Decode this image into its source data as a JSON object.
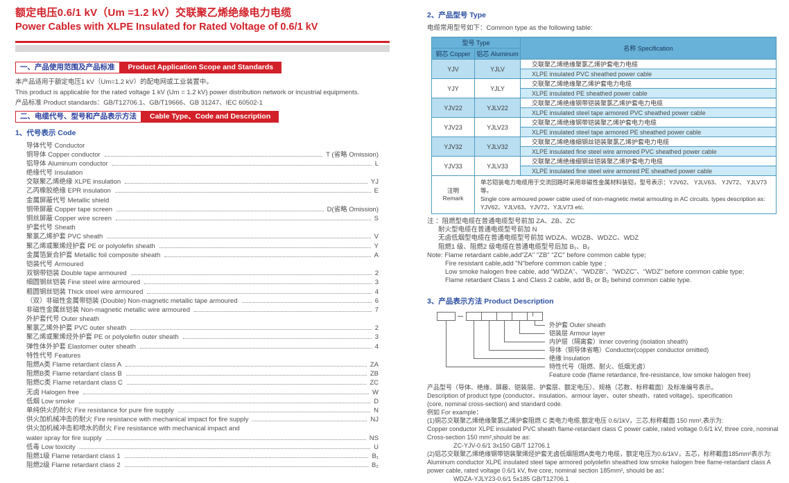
{
  "colors": {
    "accent_red": "#d3212a",
    "heading_blue": "#2b4ea2",
    "table_header_bg": "#68b1d8",
    "table_row_blue": "#cdeaf8",
    "table_cell_shaded": "#b9def1",
    "gray_bar": "#d9d9d9"
  },
  "page": {
    "title_zh": "额定电压0.6/1 kV（Um =1.2 kV）交联聚乙烯绝缘电力电缆",
    "title_en": "Power Cables with XLPE Insulated for Rated Voltage of 0.6/1 kV"
  },
  "section1": {
    "heading_zh": "一、产品使用范围及产品标准",
    "heading_en": "Product Application Scope and Standards",
    "body_zh": "本产品适用于额定电压1 kV（Um=1.2 kV）的配电网或工业装置中。",
    "body_en": "This product is applicable for the rated voltage 1 kV (Um = 1.2 kV) power distribution network or incustrial equipments.",
    "standards": "产品标准 Product standards：GB/T12706.1、GB/T19666、GB 31247、IEC 60502-1"
  },
  "section2": {
    "heading_zh": "二、电缆代号、型号和产品表示方法",
    "heading_en": "Cable Type、Code and Description",
    "sub1": "1、代号表示  Code",
    "code_list": [
      {
        "t": "h",
        "label": "导体代号 Conductor"
      },
      {
        "t": "i",
        "label": "铜导体 Copper conductor",
        "code": "T (省略 Omission)"
      },
      {
        "t": "i",
        "label": "铝导体 Aluminum conductor",
        "code": "L"
      },
      {
        "t": "h",
        "label": "绝缘代号 Insulation"
      },
      {
        "t": "i",
        "label": "交联聚乙烯绝缘 XLPE insulation",
        "code": "YJ"
      },
      {
        "t": "i",
        "label": "乙丙橡胶绝缘 EPR insulation",
        "code": "E"
      },
      {
        "t": "h",
        "label": "金属屏蔽代号 Metallic shield"
      },
      {
        "t": "i",
        "label": "铜带屏蔽 Copper tape screen",
        "code": "D(省略 Omission)"
      },
      {
        "t": "i",
        "label": "铜丝屏蔽 Copper wire screen",
        "code": "S"
      },
      {
        "t": "h",
        "label": "护套代号 Sheath"
      },
      {
        "t": "i",
        "label": "聚氯乙烯护套 PVC sheath",
        "code": "V"
      },
      {
        "t": "i",
        "label": "聚乙烯或聚烯烃护套 PE or polyolefin sheath",
        "code": "Y"
      },
      {
        "t": "i",
        "label": "金属箔复合护套 Metallic foil composite sheath",
        "code": "A"
      },
      {
        "t": "h",
        "label": "铠装代号 Armoured"
      },
      {
        "t": "i",
        "label": "双钢带铠装 Double tape armoured",
        "code": "2"
      },
      {
        "t": "i",
        "label": "细圆钢丝铠装 Fine steel wire armoured",
        "code": "3"
      },
      {
        "t": "i",
        "label": "粗圆钢丝铠装 Thick steel wire armoured",
        "code": "4"
      },
      {
        "t": "i",
        "label": "（双）非磁性金属带铠装 (Double) Non-magnetic metallic tape armoured",
        "code": "6"
      },
      {
        "t": "i",
        "label": "非磁性金属丝铠装 Non-magnetic metallic wire armoured",
        "code": "7"
      },
      {
        "t": "h",
        "label": "外护套代号 Outer sheath"
      },
      {
        "t": "i",
        "label": "聚氯乙烯外护套 PVC outer sheath",
        "code": "2"
      },
      {
        "t": "i",
        "label": "聚乙烯或聚烯烃外护套 PE or polyolefin outer sheath",
        "code": "3"
      },
      {
        "t": "i",
        "label": "弹性体外护套 Elastomer outer sheath",
        "code": "4"
      },
      {
        "t": "h",
        "label": "特性代号 Features"
      },
      {
        "t": "i",
        "label": "阻燃A类 Flame retardant class A",
        "code": "ZA"
      },
      {
        "t": "i",
        "label": "阻燃B类 Flame retardant class B",
        "code": "ZB"
      },
      {
        "t": "i",
        "label": "阻燃C类 Flame retardant class C",
        "code": "ZC"
      },
      {
        "t": "i",
        "label": "无卤 Halogen free",
        "code": "W"
      },
      {
        "t": "i",
        "label": "低烟 Low smoke",
        "code": "D"
      },
      {
        "t": "i",
        "label": "单纯供火的耐火 Fire resistance for pure fire supply",
        "code": "N"
      },
      {
        "t": "i",
        "label": "供火加机械冲击的耐火 Fire resistance with mechanical impact for fire supply",
        "code": "NJ"
      },
      {
        "t": "h",
        "label": "供火加机械冲击和喷水的耐火 Fire resistance with mechanical impact and"
      },
      {
        "t": "i",
        "label": "water spray for fire supply",
        "code": "NS"
      },
      {
        "t": "i",
        "label": "低毒 Low toxicity",
        "code": "U"
      },
      {
        "t": "i",
        "label": "阻燃1级 Flame retardant class 1",
        "code": "B₁"
      },
      {
        "t": "i",
        "label": "阻燃2级 Flame retardant class 2",
        "code": "B₂"
      }
    ]
  },
  "section_type": {
    "heading": "2、产品型号 Type",
    "subtitle": "电缆常用型号如下：Common type as the following table:",
    "table": {
      "header": {
        "type": "型号 Type",
        "copper": "铜芯 Copper",
        "aluminum": "铝芯 Aluminum",
        "spec": "名称 Specification"
      },
      "rows": [
        {
          "copper": "YJV",
          "aluminum": "YJLV",
          "zh": "交联聚乙烯绝缘聚氯乙烯护套电力电缆",
          "en": "XLPE insulated PVC sheathed power cable",
          "shaded": true
        },
        {
          "copper": "YJY",
          "aluminum": "YJLY",
          "zh": "交联聚乙烯绝缘聚乙烯护套电力电缆",
          "en": "XLPE insulated PE sheathed power cable",
          "shaded": false
        },
        {
          "copper": "YJV22",
          "aluminum": "YJLV22",
          "zh": "交联聚乙烯绝缘钢带铠装聚氯乙烯护套电力电缆",
          "en": "XLPE insulated steel tape armored PVC sheathed power cable",
          "shaded": true
        },
        {
          "copper": "YJV23",
          "aluminum": "YJLV23",
          "zh": "交联聚乙烯绝缘钢带铠装聚乙烯护套电力电缆",
          "en": "XLPE insulated steel tape armored PE sheathed power cable",
          "shaded": false
        },
        {
          "copper": "YJV32",
          "aluminum": "YJLV32",
          "zh": "交联聚乙烯绝缘细钢丝铠装聚氯乙烯护套电力电缆",
          "en": "XLPE insulated fine steel wire armored PVC sheathed power cable",
          "shaded": true
        },
        {
          "copper": "YJV33",
          "aluminum": "YJLV33",
          "zh": "交联聚乙烯绝缘细钢丝铠装聚乙烯护套电力电缆",
          "en": "XLPE insulated fine steel wire armored PE sheathed power cable",
          "shaded": false
        }
      ],
      "remark": {
        "label_zh": "注明",
        "label_en": "Remark",
        "text_zh": "单芯铠装电力电缆用于交流回路时采用非磁性金属材料装铠，型号表示：YJV62、 YJLV63、 YJV72、 YJLV73等。",
        "text_en": "Single core armoured power cable used of non-magnetic metal armouting in AC circuits. types description as: YJV62、YJLV63、YJV72、YJLV73 etc."
      }
    },
    "notes": [
      {
        "ind": 0,
        "text": "注 ：阻燃型电缆在普通电缆型号前加 ZA、ZB、ZC"
      },
      {
        "ind": 1,
        "text": "耐火型电缆在普通电缆型号前加 N"
      },
      {
        "ind": 1,
        "text": "无卤低烟型电缆在普通电缆型号前加 WDZA、WDZB、WDZC、WDZ"
      },
      {
        "ind": 1,
        "text": "阻燃1 级、阻燃2 级电缆在普通电缆型号后加 B₁、B₂"
      },
      {
        "ind": 0,
        "text": "Note: Flame retardant cable,add\"ZA\" \"ZB\" \"ZC\" before common cable type;"
      },
      {
        "ind": 2,
        "text": "Fire resistant cable,add \"N\"before common cable type ;"
      },
      {
        "ind": 2,
        "text": "Low smoke halogen free cable, add \"WDZA\"、\"WDZB\"、\"WDZC\"、\"WDZ\" before common cable type;"
      },
      {
        "ind": 2,
        "text": "Flame retardant Class 1 and Class 2 cable, add B₁ or B₂ behind common cable type."
      }
    ]
  },
  "section3": {
    "heading": "3、产品表示方法 Product Description",
    "diagram_labels": [
      "外护套 Outer sheath",
      "铠装层 Armour layer",
      "内护层（隔离套）Inner covering (isolation sheath)",
      "导体（铜导体省略）Conductor(copper conductor omitted)",
      "绝缘 Insulation",
      "特性代号（阻燃、耐火、低烟无卤）",
      "Feature code (flame retardance, fire-resistance, low smoke halogen free)"
    ],
    "description_lines": [
      {
        "style": "normal",
        "text": "产品型号（导体、绝缘、屏蔽、铠装层、护套层、额定电压）、规格（芯数、标称截面）及标准编号表示。"
      },
      {
        "style": "normal",
        "text": "Description of product type (conductor、insulation、armour layer、outer sheath、rated voltage)、specification"
      },
      {
        "style": "normal",
        "text": "(core, nominal cross-section) and standard code."
      },
      {
        "style": "normal",
        "text": "例如 For example："
      },
      {
        "style": "normal",
        "text": "(1)铜芯交联聚乙烯绝缘聚氯乙烯护套阻燃 C 类电力电缆,额定电压 0.6/1kV，三芯,标称截面 150 mm²,表示为:"
      },
      {
        "style": "normal",
        "text": "Copper conductor XLPE insulated PVC sheath flame-retardant class C power cable, rated voltage 0.6/1 kV, three core, nominal"
      },
      {
        "style": "normal",
        "text": "Cross-section 150 mm²,should be as:"
      },
      {
        "style": "code",
        "text": "ZC-YJV-0.6/1 3x150 GB/T 12706.1"
      },
      {
        "style": "normal",
        "text": "(2)铝芯交联聚乙烯绝缘钢带铠装聚烯烃护套无卤低烟阻燃A类电力电缆，额定电压为0.6/1kV，五芯，标称截面185mm²表示为:"
      },
      {
        "style": "normal",
        "text": "Aluminum conductor XLPE insulated steel tape armored polyolefin sheathed low smoke halogen free flame-retardant class A"
      },
      {
        "style": "normal",
        "text": "power cable, rated voltage 0.6/1 kV, five core, nominal section 185mm², should be as："
      },
      {
        "style": "code",
        "text": "WDZA-YJLY23-0.6/1 5x185 GB/T12706.1"
      }
    ]
  }
}
